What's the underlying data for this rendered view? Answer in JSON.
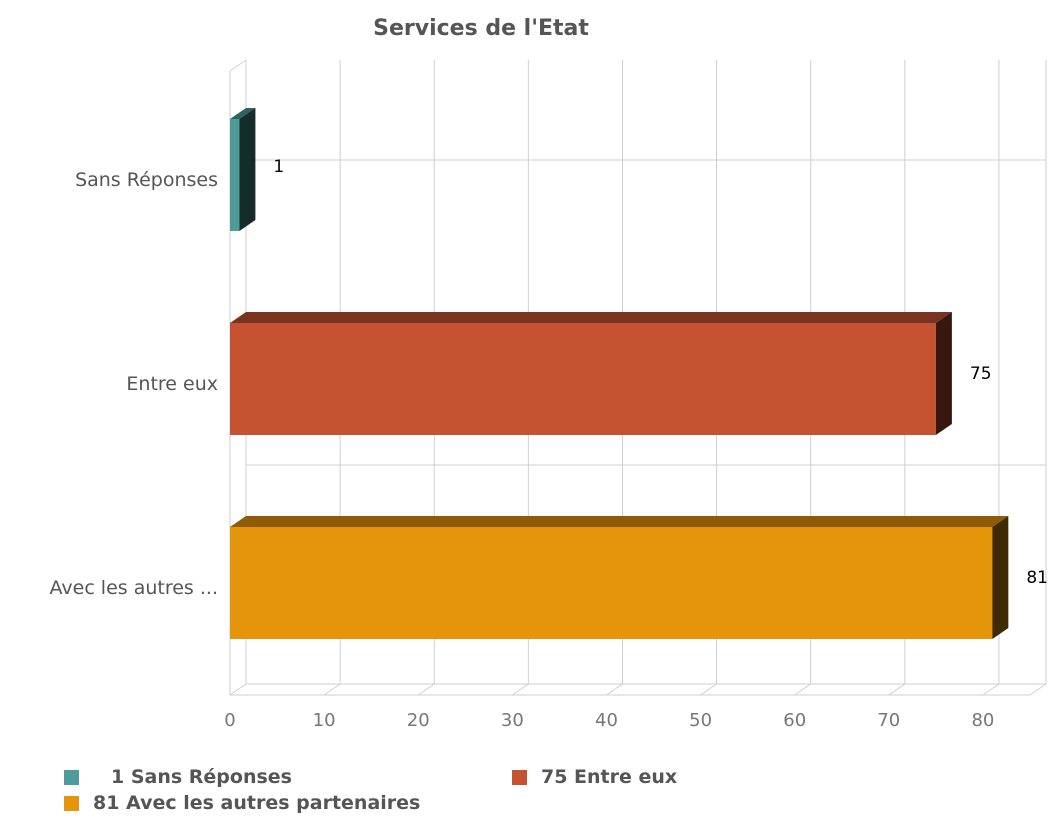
{
  "chart_data": {
    "type": "bar",
    "orientation": "horizontal",
    "title": "Services de l'Etat",
    "categories": [
      "Sans Réponses",
      "Entre eux",
      "Avec les autres ..."
    ],
    "values": [
      1,
      75,
      81
    ],
    "value_labels": [
      "1",
      "75",
      "81"
    ],
    "colors": [
      "#4e9c9a",
      "#c55332",
      "#e5950a"
    ],
    "xlim": [
      0,
      85
    ],
    "xticks": [
      0,
      10,
      20,
      30,
      40,
      50,
      60,
      70,
      80
    ],
    "xtick_labels": [
      "0",
      "10",
      "20",
      "30",
      "40",
      "50",
      "60",
      "70",
      "80"
    ],
    "grid": true,
    "style": "3d",
    "legend": {
      "position": "bottom-left",
      "items": [
        {
          "label": "1 Sans Réponses",
          "color": "#4e9c9a"
        },
        {
          "label": "75 Entre eux",
          "color": "#c55332"
        },
        {
          "label": "81 Avec les autres partenaires",
          "color": "#e5950a"
        }
      ]
    }
  }
}
